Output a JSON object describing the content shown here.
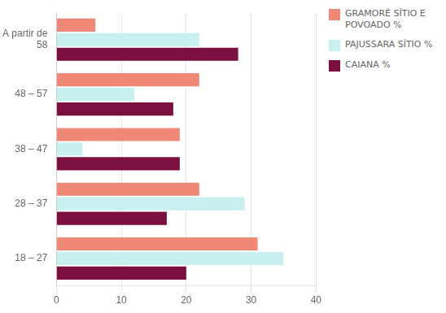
{
  "chart_data": {
    "type": "bar",
    "orientation": "horizontal",
    "categories": [
      "A partir de\n58",
      "48 – 57",
      "38 – 47",
      "28 – 37",
      "18 – 27"
    ],
    "series": [
      {
        "name": "GRAMORÉ SÍTIO E\nPOVOADO %",
        "color": "#F08878",
        "values": [
          6,
          22,
          19,
          22,
          31
        ]
      },
      {
        "name": "PAJUSSARA SÍTIO %",
        "color": "#C8F0F0",
        "values": [
          22,
          12,
          4,
          29,
          35
        ]
      },
      {
        "name": "CAIANA %",
        "color": "#7B1040",
        "values": [
          28,
          18,
          19,
          17,
          20
        ]
      }
    ],
    "xlim": [
      0,
      40
    ],
    "xticks": [
      0,
      10,
      20,
      30,
      40
    ],
    "grid": true,
    "legend": "right"
  }
}
